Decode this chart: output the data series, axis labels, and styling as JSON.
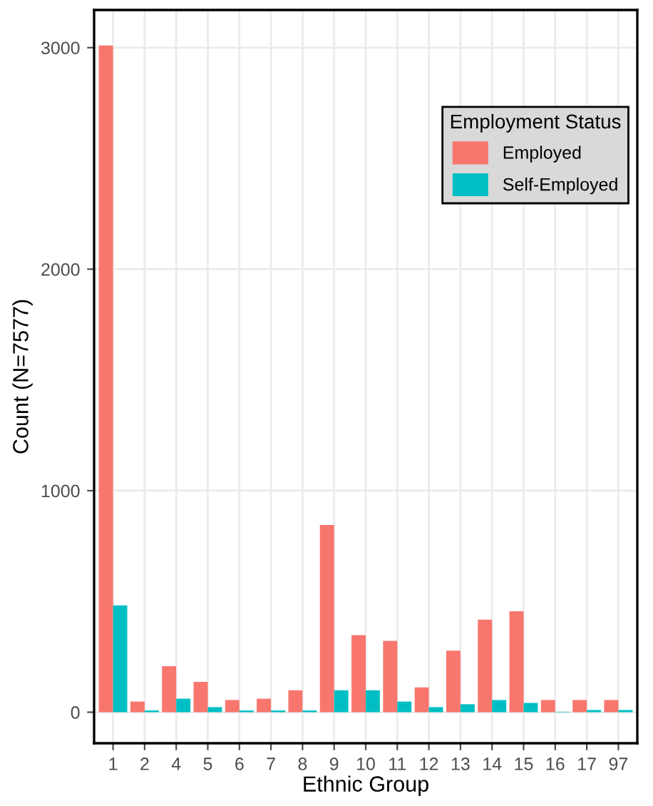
{
  "chart_data": {
    "type": "bar",
    "xlabel": "Ethnic Group",
    "ylabel": "Count (N=7577)",
    "legend_title": "Employment Status",
    "categories": [
      "1",
      "2",
      "4",
      "5",
      "6",
      "7",
      "8",
      "9",
      "10",
      "11",
      "12",
      "13",
      "14",
      "15",
      "16",
      "17",
      "97"
    ],
    "series": [
      {
        "name": "Employed",
        "color": "#f8766d",
        "values": [
          3010,
          48,
          208,
          137,
          55,
          61,
          99,
          845,
          348,
          322,
          112,
          278,
          418,
          456,
          55,
          55,
          55
        ]
      },
      {
        "name": "Self-Employed",
        "color": "#00bfc4",
        "values": [
          482,
          8,
          61,
          23,
          8,
          8,
          8,
          99,
          99,
          48,
          23,
          36,
          55,
          42,
          2,
          10,
          10
        ]
      }
    ],
    "ylim": [
      -140,
      3170
    ],
    "yticks": [
      0,
      1000,
      2000,
      3000
    ],
    "grid": true,
    "legend": "top right"
  }
}
